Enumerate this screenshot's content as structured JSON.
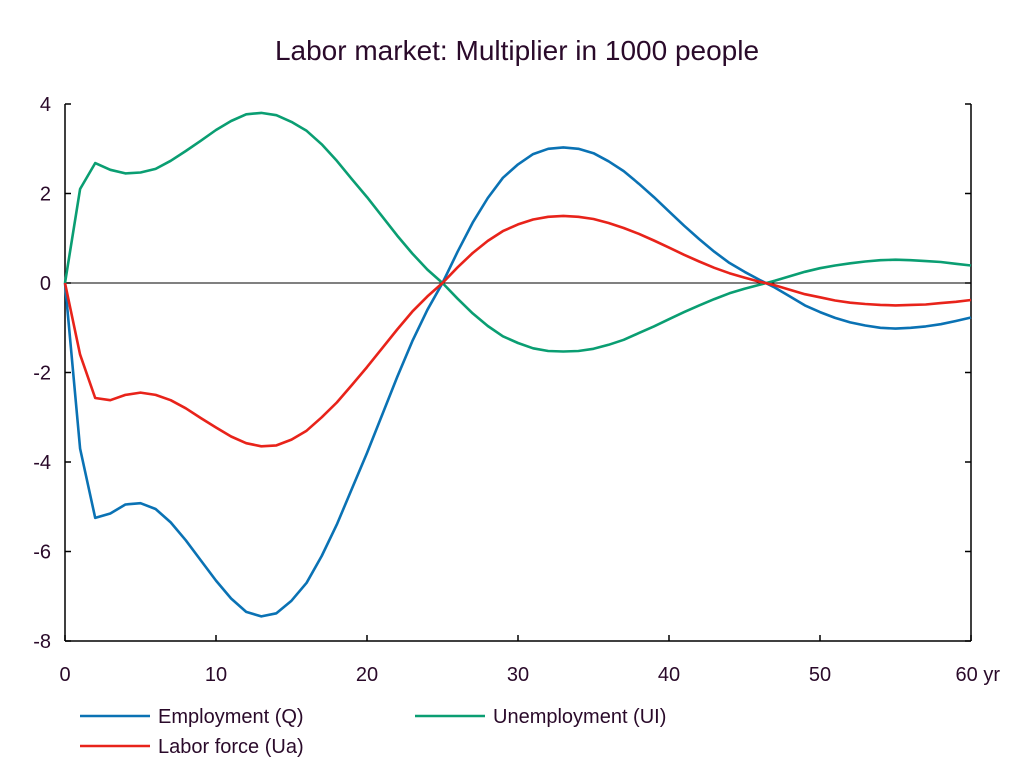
{
  "chart_data": {
    "type": "line",
    "title": "Labor market: Multiplier in 1000 people",
    "xlabel": "",
    "ylabel": "",
    "x_unit_label": "yr",
    "xlim": [
      0,
      60
    ],
    "ylim": [
      -8,
      4
    ],
    "x_ticks": [
      0,
      10,
      20,
      30,
      40,
      50,
      60
    ],
    "x_tick_labels": [
      "0",
      "10",
      "20",
      "30",
      "40",
      "50",
      "60 yr"
    ],
    "y_ticks": [
      4,
      2,
      0,
      -2,
      -4,
      -6,
      -8
    ],
    "y_tick_labels": [
      "4",
      "2",
      "0",
      "-2",
      "-4",
      "-6",
      "-8"
    ],
    "grid": false,
    "legend_position": "bottom",
    "x": [
      0,
      1,
      2,
      3,
      4,
      5,
      6,
      7,
      8,
      9,
      10,
      11,
      12,
      13,
      14,
      15,
      16,
      17,
      18,
      19,
      20,
      21,
      22,
      23,
      24,
      25,
      26,
      27,
      28,
      29,
      30,
      31,
      32,
      33,
      34,
      35,
      36,
      37,
      38,
      39,
      40,
      41,
      42,
      43,
      44,
      45,
      46,
      47,
      48,
      49,
      50,
      51,
      52,
      53,
      54,
      55,
      56,
      57,
      58,
      59,
      60
    ],
    "series": [
      {
        "name": "Employment (Q)",
        "color": "#0a72b4",
        "values": [
          0,
          -3.7,
          -5.25,
          -5.15,
          -4.95,
          -4.92,
          -5.05,
          -5.35,
          -5.75,
          -6.2,
          -6.65,
          -7.05,
          -7.35,
          -7.45,
          -7.38,
          -7.1,
          -6.7,
          -6.1,
          -5.4,
          -4.6,
          -3.8,
          -2.95,
          -2.1,
          -1.3,
          -0.6,
          0,
          0.7,
          1.35,
          1.9,
          2.35,
          2.65,
          2.88,
          3.0,
          3.03,
          3.0,
          2.9,
          2.72,
          2.5,
          2.22,
          1.92,
          1.6,
          1.28,
          0.98,
          0.7,
          0.45,
          0.25,
          0.07,
          -0.1,
          -0.3,
          -0.5,
          -0.65,
          -0.78,
          -0.88,
          -0.95,
          -1.0,
          -1.02,
          -1.0,
          -0.97,
          -0.92,
          -0.85,
          -0.77
        ]
      },
      {
        "name": "Unemployment (UI)",
        "color": "#0a9e72",
        "values": [
          0,
          2.1,
          2.68,
          2.53,
          2.45,
          2.47,
          2.55,
          2.73,
          2.95,
          3.18,
          3.42,
          3.62,
          3.77,
          3.8,
          3.75,
          3.6,
          3.4,
          3.1,
          2.73,
          2.32,
          1.92,
          1.49,
          1.06,
          0.66,
          0.3,
          0,
          -0.35,
          -0.68,
          -0.96,
          -1.19,
          -1.34,
          -1.46,
          -1.52,
          -1.53,
          -1.52,
          -1.47,
          -1.38,
          -1.27,
          -1.12,
          -0.97,
          -0.81,
          -0.65,
          -0.5,
          -0.36,
          -0.23,
          -0.13,
          -0.04,
          0.05,
          0.15,
          0.25,
          0.33,
          0.39,
          0.44,
          0.48,
          0.51,
          0.52,
          0.51,
          0.49,
          0.47,
          0.43,
          0.39
        ]
      },
      {
        "name": "Labor force (Ua)",
        "color": "#e8231a",
        "values": [
          0,
          -1.6,
          -2.57,
          -2.62,
          -2.5,
          -2.45,
          -2.5,
          -2.62,
          -2.8,
          -3.02,
          -3.23,
          -3.43,
          -3.58,
          -3.65,
          -3.63,
          -3.5,
          -3.3,
          -3.0,
          -2.67,
          -2.28,
          -1.88,
          -1.46,
          -1.04,
          -0.64,
          -0.3,
          0,
          0.35,
          0.67,
          0.94,
          1.16,
          1.31,
          1.42,
          1.48,
          1.5,
          1.48,
          1.43,
          1.34,
          1.23,
          1.1,
          0.95,
          0.79,
          0.63,
          0.48,
          0.34,
          0.22,
          0.12,
          0.03,
          -0.05,
          -0.15,
          -0.25,
          -0.32,
          -0.39,
          -0.44,
          -0.47,
          -0.49,
          -0.5,
          -0.49,
          -0.48,
          -0.45,
          -0.42,
          -0.38
        ]
      }
    ]
  }
}
